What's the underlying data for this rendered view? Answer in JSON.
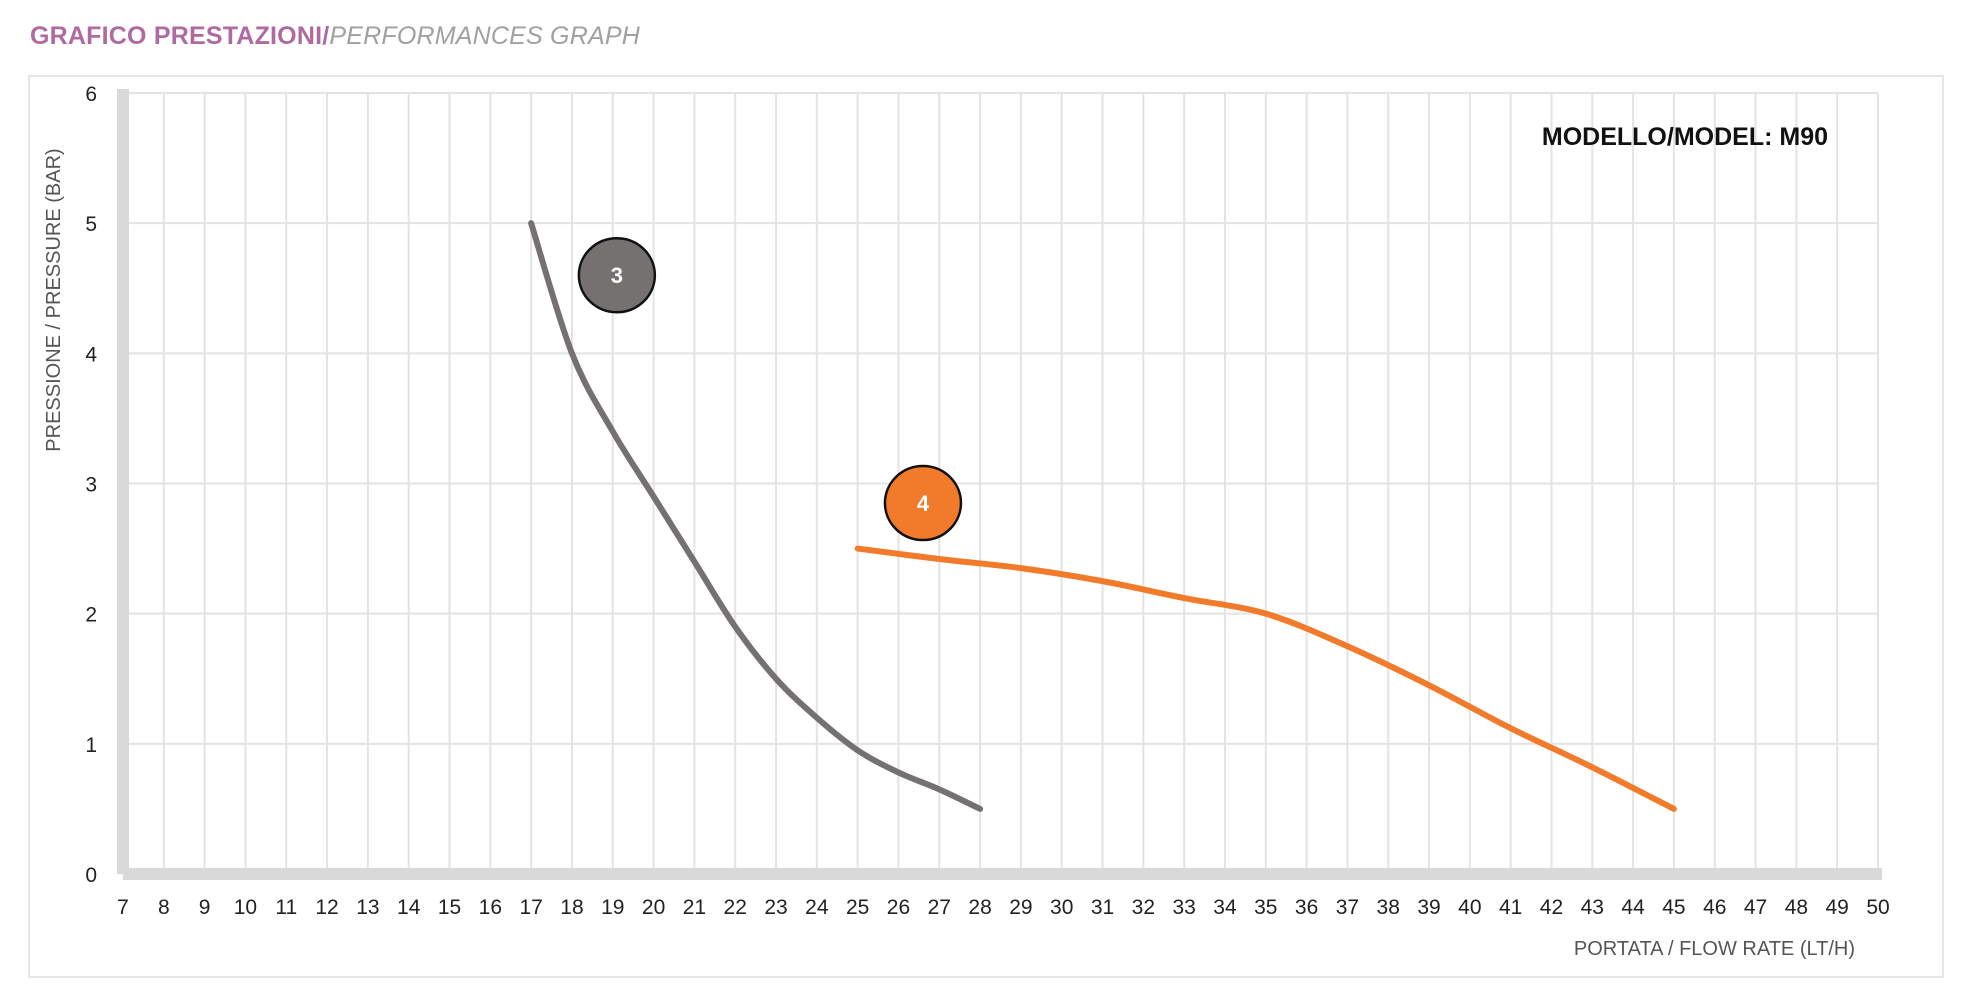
{
  "title": {
    "main": "GRAFICO PRESTAZIONI/",
    "sub": "PERFORMANCES GRAPH"
  },
  "chart_data": {
    "type": "line",
    "model_label": "MODELLO/MODEL: M90",
    "xlabel": "PORTATA / FLOW RATE (LT/H)",
    "ylabel": "PRESSIONE / PRESSURE (BAR)",
    "xlim": [
      7,
      50
    ],
    "ylim": [
      0,
      6
    ],
    "xticks": [
      7,
      8,
      9,
      10,
      11,
      12,
      13,
      14,
      15,
      16,
      17,
      18,
      19,
      20,
      21,
      22,
      23,
      24,
      25,
      26,
      27,
      28,
      29,
      30,
      31,
      32,
      33,
      34,
      35,
      36,
      37,
      38,
      39,
      40,
      41,
      42,
      43,
      44,
      45,
      46,
      47,
      48,
      49,
      50
    ],
    "yticks": [
      0,
      1,
      2,
      3,
      4,
      5,
      6
    ],
    "grid": true,
    "series": [
      {
        "name": "3",
        "color": "#757171",
        "x": [
          17,
          18,
          19,
          20,
          21,
          22,
          23,
          24,
          25,
          26,
          27,
          28
        ],
        "y": [
          5,
          4,
          3.4,
          2.9,
          2.4,
          1.9,
          1.5,
          1.2,
          0.95,
          0.78,
          0.65,
          0.5
        ],
        "label_at": [
          19.1,
          4.6
        ]
      },
      {
        "name": "4",
        "color": "#f27b2b",
        "x": [
          25,
          27,
          29,
          31,
          33,
          35,
          37,
          39,
          41,
          43,
          45
        ],
        "y": [
          2.5,
          2.42,
          2.35,
          2.25,
          2.12,
          2.0,
          1.75,
          1.45,
          1.12,
          0.82,
          0.5
        ],
        "label_at": [
          26.6,
          2.85
        ]
      }
    ]
  }
}
